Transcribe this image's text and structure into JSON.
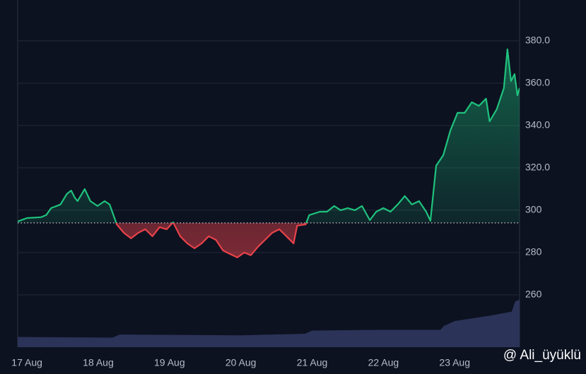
{
  "chart_data": {
    "type": "line",
    "x": [
      -0.13,
      0,
      0.2,
      0.27,
      0.34,
      0.47,
      0.56,
      0.62,
      0.67,
      0.71,
      0.81,
      0.89,
      0.99,
      1.09,
      1.16,
      1.26,
      1.36,
      1.46,
      1.56,
      1.66,
      1.76,
      1.86,
      1.96,
      2.05,
      2.15,
      2.25,
      2.35,
      2.45,
      2.55,
      2.65,
      2.75,
      2.85,
      2.95,
      3.05,
      3.14,
      3.24,
      3.34,
      3.44,
      3.54,
      3.64,
      3.74,
      3.79,
      3.91,
      3.96,
      4.11,
      4.21,
      4.31,
      4.4,
      4.5,
      4.6,
      4.7,
      4.81,
      4.9,
      5.0,
      5.1,
      5.2,
      5.3,
      5.4,
      5.5,
      5.6,
      5.66,
      5.74,
      5.84,
      5.94,
      6.04,
      6.14,
      6.24,
      6.34,
      6.44,
      6.49,
      6.59,
      6.69,
      6.74,
      6.79,
      6.84,
      6.88,
      6.91
    ],
    "values": [
      294.7,
      296.3,
      296.7,
      297.7,
      301.0,
      302.7,
      307.7,
      309.3,
      306.0,
      304.3,
      310.0,
      304.3,
      302.0,
      304.3,
      302.7,
      293.3,
      289.3,
      286.7,
      289.3,
      291.0,
      287.7,
      292.0,
      291.0,
      294.3,
      287.7,
      284.3,
      282.0,
      284.3,
      287.7,
      286.0,
      281.0,
      279.3,
      277.7,
      280.0,
      278.7,
      282.7,
      286.0,
      289.3,
      291.0,
      287.7,
      284.3,
      292.7,
      293.3,
      297.7,
      299.3,
      299.3,
      302.0,
      300.0,
      301.0,
      300.0,
      302.0,
      295.3,
      299.3,
      301.0,
      299.3,
      302.7,
      306.7,
      302.7,
      304.3,
      299.3,
      295.0,
      321.0,
      326.0,
      337.7,
      346.0,
      346.0,
      351.0,
      349.3,
      352.7,
      342.0,
      347.7,
      357.7,
      376.0,
      361.0,
      364.3,
      354.3,
      357.7
    ],
    "baseline": 294,
    "up_color": "#1fc27d",
    "down_color": "#e8424a",
    "xlim": [
      -0.13,
      6.91
    ],
    "xticks": [
      {
        "value": 0,
        "label": "17 Aug"
      },
      {
        "value": 1,
        "label": "18 Aug"
      },
      {
        "value": 2,
        "label": "19 Aug"
      },
      {
        "value": 3,
        "label": "20 Aug"
      },
      {
        "value": 4,
        "label": "21 Aug"
      },
      {
        "value": 5,
        "label": "22 Aug"
      },
      {
        "value": 6,
        "label": "23 Aug"
      }
    ],
    "ylim": [
      235.3,
      399.3
    ],
    "yticks": [
      260,
      280,
      {
        "value": 300,
        "label": "300"
      },
      {
        "value": 320,
        "label": "320.0"
      },
      {
        "value": 340,
        "label": "340.0"
      },
      {
        "value": 360,
        "label": "360.0"
      },
      {
        "value": 380,
        "label": "380.0"
      }
    ],
    "grid": true,
    "volume": {
      "color": "#2c3358",
      "ylim": [
        0,
        100
      ],
      "x": [
        -0.13,
        1.2,
        1.3,
        3.0,
        3.9,
        4.0,
        5.0,
        5.8,
        5.85,
        6.0,
        6.5,
        6.8,
        6.85,
        6.91
      ],
      "values": [
        13,
        12,
        16,
        15,
        17,
        21,
        22,
        22,
        27,
        33,
        40,
        45,
        58,
        60
      ]
    }
  },
  "watermark": "@ Ali_üyüklü"
}
